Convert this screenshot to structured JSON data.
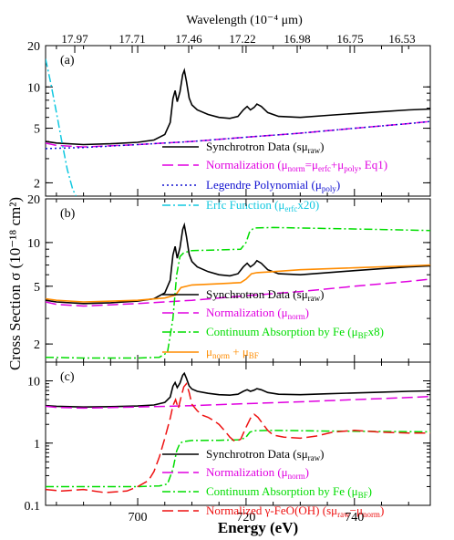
{
  "figure": {
    "top_axis_label": "Wavelength (10⁻⁴ μm)",
    "top_ticks": [
      "17.97",
      "17.71",
      "17.46",
      "17.22",
      "16.98",
      "16.75",
      "16.53"
    ],
    "y_label": "Cross Section σ (10⁻¹⁸ cm²)",
    "x_label": "Energy (eV)"
  },
  "chart_data": [
    {
      "type": "line",
      "panel_label": "(a)",
      "x_range": [
        683,
        754
      ],
      "y_scale": "log",
      "ylim": [
        1.6,
        20
      ],
      "y_ticks": [
        2,
        5,
        10,
        20
      ],
      "y_tick_labels": [
        "2",
        "5",
        "10",
        "20"
      ],
      "grid": false,
      "legend_position": "lower-right",
      "series": [
        {
          "name": "Synchrotron Data (sμraw)",
          "color": "#000000",
          "style": "solid",
          "x": [
            683,
            685,
            690,
            695,
            700,
            703,
            705,
            706,
            706.5,
            706.9,
            707.3,
            707.8,
            708.3,
            708.6,
            709,
            709.5,
            710,
            711,
            713,
            715,
            717,
            718.5,
            719.5,
            720.2,
            720.8,
            721.5,
            722,
            722.8,
            724,
            726,
            730,
            735,
            740,
            745,
            750,
            754
          ],
          "y": [
            4.0,
            3.9,
            3.8,
            3.85,
            3.95,
            4.1,
            4.5,
            5.5,
            8.2,
            9.4,
            7.8,
            9.2,
            12.3,
            13.2,
            11.0,
            8.3,
            7.4,
            6.8,
            6.3,
            6.0,
            5.9,
            6.1,
            6.8,
            7.2,
            6.8,
            7.1,
            7.5,
            7.2,
            6.5,
            6.1,
            6.0,
            6.2,
            6.4,
            6.6,
            6.8,
            6.9
          ]
        },
        {
          "name": "Normalization (μnorm=μerfc+μpoly, Eq1)",
          "color": "#e000e0",
          "style": "longdash",
          "x": [
            683,
            685,
            690,
            700,
            710,
            720,
            730,
            740,
            750,
            754
          ],
          "y": [
            3.9,
            3.75,
            3.65,
            3.8,
            4.0,
            4.3,
            4.6,
            5.0,
            5.4,
            5.6
          ]
        },
        {
          "name": "Legendre Polynomial (μpoly)",
          "color": "#1010d0",
          "style": "dotted",
          "x": [
            683,
            690,
            700,
            710,
            720,
            730,
            740,
            750,
            754
          ],
          "y": [
            3.55,
            3.62,
            3.8,
            4.0,
            4.3,
            4.6,
            5.0,
            5.4,
            5.6
          ]
        },
        {
          "name": "Erfc Function (μerfcx20)",
          "color": "#10c8e0",
          "style": "dashdot",
          "x": [
            683,
            684,
            685,
            686,
            687,
            688,
            688.6
          ],
          "y": [
            16.0,
            10.5,
            6.5,
            4.0,
            2.5,
            1.8,
            1.6
          ]
        }
      ]
    },
    {
      "type": "line",
      "panel_label": "(b)",
      "x_range": [
        683,
        754
      ],
      "y_scale": "log",
      "ylim": [
        1.5,
        20
      ],
      "y_ticks": [
        2,
        5,
        10,
        20
      ],
      "y_tick_labels": [
        "2",
        "5",
        "10",
        "20"
      ],
      "grid": false,
      "legend_position": "lower-right",
      "series": [
        {
          "name": "Synchrotron Data (sμraw)",
          "color": "#000000",
          "style": "solid",
          "x": [
            683,
            685,
            690,
            695,
            700,
            703,
            705,
            706,
            706.5,
            706.9,
            707.3,
            707.8,
            708.3,
            708.6,
            709,
            709.5,
            710,
            711,
            713,
            715,
            717,
            718.5,
            719.5,
            720.2,
            720.8,
            721.5,
            722,
            722.8,
            724,
            726,
            730,
            735,
            740,
            745,
            750,
            754
          ],
          "y": [
            4.0,
            3.9,
            3.8,
            3.85,
            3.95,
            4.1,
            4.5,
            5.5,
            8.2,
            9.4,
            7.8,
            9.2,
            12.3,
            13.2,
            11.0,
            8.3,
            7.4,
            6.8,
            6.3,
            6.0,
            5.9,
            6.1,
            6.8,
            7.2,
            6.8,
            7.1,
            7.5,
            7.2,
            6.5,
            6.1,
            6.0,
            6.2,
            6.4,
            6.6,
            6.8,
            6.9
          ]
        },
        {
          "name": "Normalization (μnorm)",
          "color": "#e000e0",
          "style": "longdash",
          "x": [
            683,
            685,
            690,
            700,
            710,
            720,
            730,
            740,
            750,
            754
          ],
          "y": [
            3.9,
            3.75,
            3.65,
            3.8,
            4.0,
            4.3,
            4.6,
            5.0,
            5.4,
            5.6
          ]
        },
        {
          "name": "Continuum Absorption by Fe (μBFx8)",
          "color": "#00dd00",
          "style": "dashdot",
          "x": [
            683,
            690,
            700,
            704,
            705.5,
            706.5,
            707.2,
            707.8,
            708.5,
            710,
            715,
            719,
            720,
            720.7,
            721.5,
            725,
            735,
            745,
            754
          ],
          "y": [
            1.62,
            1.6,
            1.6,
            1.62,
            1.75,
            3.0,
            6.0,
            8.0,
            8.5,
            8.8,
            8.9,
            9.0,
            10.0,
            12.0,
            12.6,
            12.7,
            12.5,
            12.3,
            12.1
          ]
        },
        {
          "name": "μnorm + μBF",
          "color": "#ff8c00",
          "style": "solid",
          "x": [
            683,
            685,
            690,
            700,
            705,
            707,
            708,
            710,
            715,
            719,
            720,
            721,
            722,
            725,
            730,
            740,
            750,
            754
          ],
          "y": [
            4.1,
            4.0,
            3.9,
            4.0,
            4.15,
            4.35,
            4.9,
            5.1,
            5.2,
            5.3,
            5.6,
            6.1,
            6.2,
            6.3,
            6.5,
            6.7,
            6.9,
            7.0
          ]
        }
      ]
    },
    {
      "type": "line",
      "panel_label": "(c)",
      "x_range": [
        683,
        754
      ],
      "y_scale": "log",
      "ylim": [
        0.1,
        20
      ],
      "y_ticks": [
        0.1,
        1,
        10
      ],
      "y_tick_labels": [
        "0.1",
        "1",
        "10"
      ],
      "x_ticks": [
        700,
        720,
        740
      ],
      "x_tick_labels": [
        "700",
        "720",
        "740"
      ],
      "grid": false,
      "legend_position": "lower-right",
      "series": [
        {
          "name": "Synchrotron Data (sμraw)",
          "color": "#000000",
          "style": "solid",
          "x": [
            683,
            685,
            690,
            695,
            700,
            703,
            705,
            706,
            706.5,
            706.9,
            707.3,
            707.8,
            708.3,
            708.6,
            709,
            709.5,
            710,
            711,
            713,
            715,
            717,
            718.5,
            719.5,
            720.2,
            720.8,
            721.5,
            722,
            722.8,
            724,
            726,
            730,
            735,
            740,
            745,
            750,
            754
          ],
          "y": [
            4.0,
            3.9,
            3.8,
            3.85,
            3.95,
            4.1,
            4.5,
            5.5,
            8.2,
            9.4,
            7.8,
            9.2,
            12.3,
            13.2,
            11.0,
            8.3,
            7.4,
            6.8,
            6.3,
            6.0,
            5.9,
            6.1,
            6.8,
            7.2,
            6.8,
            7.1,
            7.5,
            7.2,
            6.5,
            6.1,
            6.0,
            6.2,
            6.4,
            6.6,
            6.8,
            6.9
          ]
        },
        {
          "name": "Normalization (μnorm)",
          "color": "#e000e0",
          "style": "longdash",
          "x": [
            683,
            685,
            690,
            700,
            710,
            720,
            730,
            740,
            750,
            754
          ],
          "y": [
            3.9,
            3.75,
            3.65,
            3.8,
            4.0,
            4.3,
            4.6,
            5.0,
            5.4,
            5.6
          ]
        },
        {
          "name": "Continuum Absorption by Fe (μBF)",
          "color": "#00dd00",
          "style": "dashdot",
          "x": [
            683,
            690,
            700,
            704,
            705.5,
            706.5,
            707.2,
            707.8,
            708.5,
            710,
            715,
            719,
            720,
            720.7,
            721.5,
            725,
            735,
            745,
            754
          ],
          "y": [
            0.2,
            0.2,
            0.2,
            0.205,
            0.22,
            0.38,
            0.75,
            1.0,
            1.06,
            1.1,
            1.11,
            1.13,
            1.25,
            1.5,
            1.58,
            1.6,
            1.56,
            1.54,
            1.52
          ]
        },
        {
          "name": "Normalized γ-FeO(OH) (sμraw−μnorm)",
          "color": "#ee1111",
          "style": "longdash",
          "x": [
            683,
            686,
            690,
            694,
            698,
            700,
            702,
            703,
            704,
            705,
            706,
            706.5,
            707,
            707.5,
            708,
            708.5,
            709,
            709.5,
            710,
            711,
            712,
            713,
            714,
            715,
            716,
            717,
            718,
            719,
            720,
            720.8,
            721.5,
            722.2,
            723,
            724,
            725,
            727,
            730,
            733,
            736,
            740,
            745,
            750,
            754
          ],
          "y": [
            0.18,
            0.17,
            0.18,
            0.16,
            0.17,
            0.2,
            0.25,
            0.35,
            0.6,
            1.2,
            2.5,
            4.0,
            5.0,
            3.6,
            5.5,
            8.0,
            9.0,
            6.5,
            4.2,
            3.3,
            2.8,
            2.6,
            2.3,
            2.0,
            1.6,
            1.25,
            1.05,
            1.15,
            1.8,
            2.5,
            2.9,
            2.6,
            2.1,
            1.6,
            1.35,
            1.25,
            1.2,
            1.3,
            1.5,
            1.6,
            1.5,
            1.45,
            1.45
          ]
        }
      ]
    }
  ]
}
